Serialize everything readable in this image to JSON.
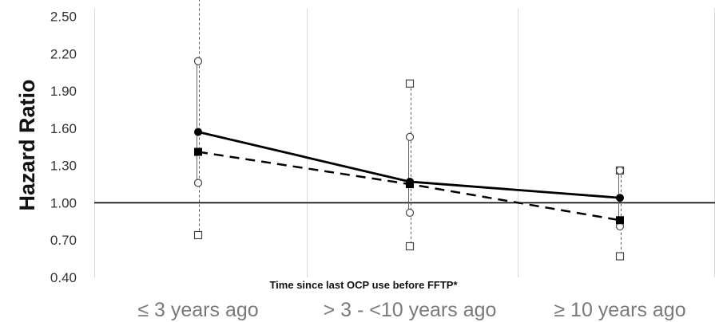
{
  "chart_data": {
    "type": "line",
    "ylabel": "Hazard Ratio",
    "annotation": "Time since last OCP use before FFTP*",
    "categories": [
      "≤ 3 years ago",
      "> 3 - <10 years ago",
      "≥ 10 years ago"
    ],
    "ylim": [
      0.4,
      2.6
    ],
    "yticks": [
      0.4,
      0.7,
      1.0,
      1.3,
      1.6,
      1.9,
      2.2,
      2.5
    ],
    "ytick_labels": [
      "0.40",
      "0.70",
      "1.00",
      "1.30",
      "1.60",
      "1.90",
      "2.20",
      "2.50"
    ],
    "reference_line": 1.0,
    "grid": "vertical",
    "series": [
      {
        "style": "solid",
        "marker": "filled-circle",
        "ci_marker": "open-circle",
        "values": [
          1.57,
          1.17,
          1.04
        ],
        "ci_lower": [
          1.16,
          0.92,
          0.81
        ],
        "ci_upper": [
          2.14,
          1.53,
          1.26
        ]
      },
      {
        "style": "dashed",
        "marker": "filled-square",
        "ci_marker": "open-square",
        "values": [
          1.41,
          1.15,
          0.86
        ],
        "ci_lower": [
          0.74,
          0.65,
          0.57
        ],
        "ci_upper": [
          2.68,
          1.96,
          1.26
        ]
      }
    ],
    "colors": {
      "series": "#000000",
      "grid": "#d9d9d9",
      "axis_text": "#333333",
      "category_text": "#7a7a7a"
    }
  }
}
